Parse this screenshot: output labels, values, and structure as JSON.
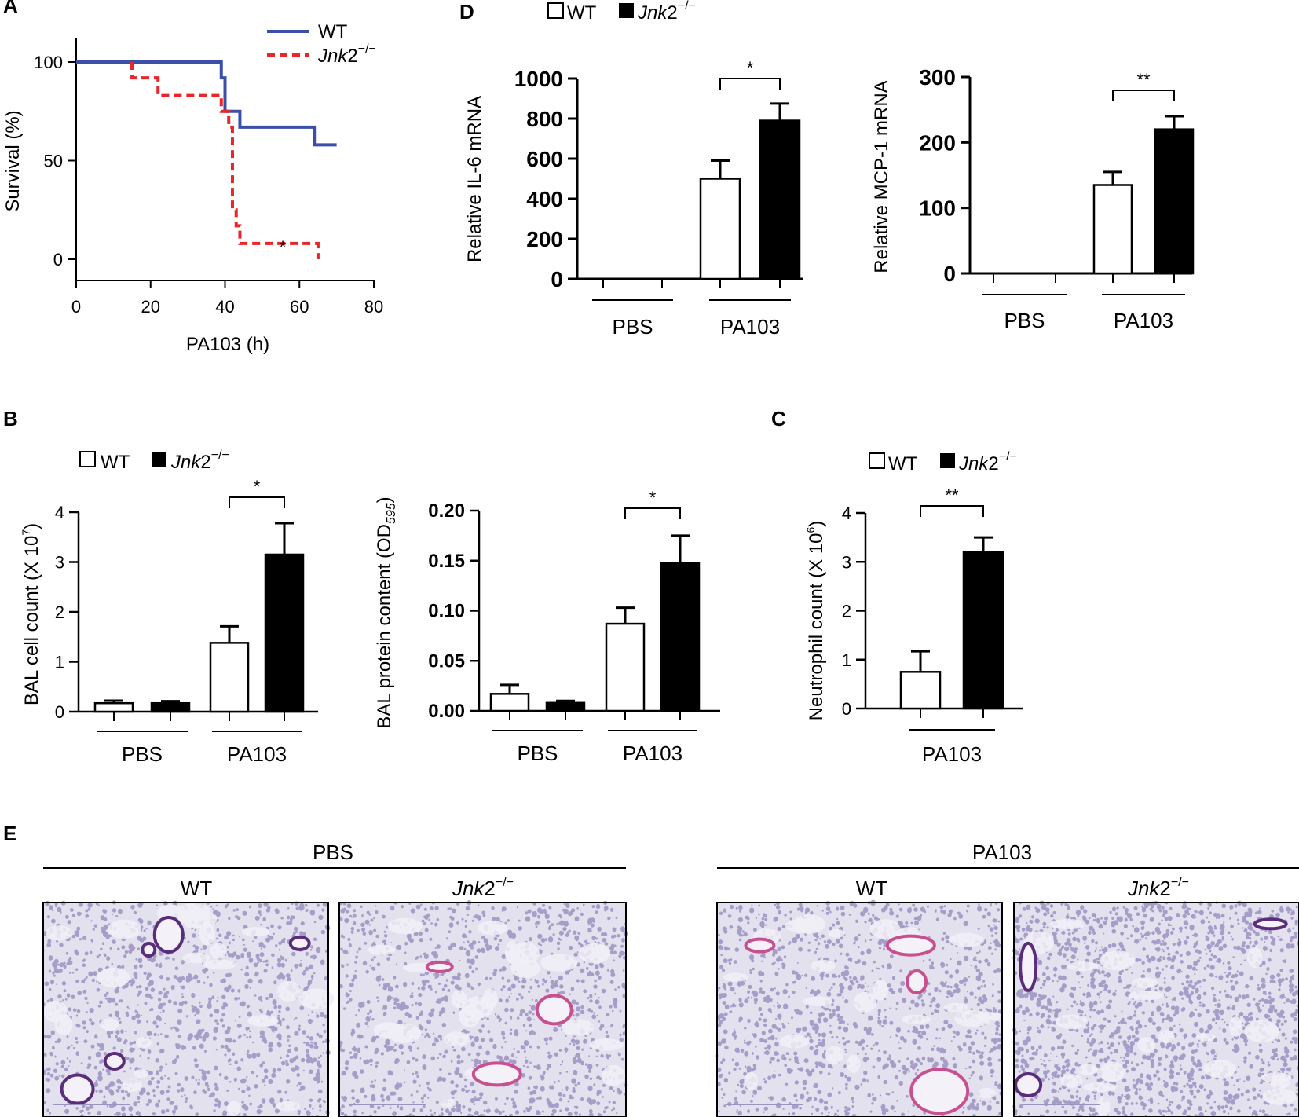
{
  "panels": {
    "A": "A",
    "B": "B",
    "C": "C",
    "D": "D",
    "E": "E"
  },
  "legend": {
    "wt": "WT",
    "ko_italic": "Jnk",
    "ko_num": "2",
    "ko_sup": "−/−"
  },
  "colors": {
    "wt_line": "#3c4fa8",
    "ko_line": "#e8262a",
    "bar_wt": "#ffffff",
    "bar_ko": "#000000"
  },
  "chart_data": [
    {
      "id": "A",
      "type": "line",
      "xlabel": "PA103 (h)",
      "ylabel": "Survival  (%)",
      "xlim": [
        0,
        80
      ],
      "ylim": [
        0,
        100
      ],
      "xticks": [
        "0",
        "20",
        "40",
        "60",
        "80"
      ],
      "yticks": [
        "0",
        "50",
        "100"
      ],
      "annotation": "*",
      "series": [
        {
          "name": "WT",
          "style": "solid",
          "steps": [
            [
              0,
              100
            ],
            [
              39,
              100
            ],
            [
              39,
              92
            ],
            [
              40,
              92
            ],
            [
              40,
              75
            ],
            [
              44,
              75
            ],
            [
              44,
              67
            ],
            [
              64,
              67
            ],
            [
              64,
              58
            ],
            [
              70,
              58
            ]
          ]
        },
        {
          "name": "Jnk2−/−",
          "style": "dashed",
          "steps": [
            [
              15,
              100
            ],
            [
              15,
              92
            ],
            [
              22,
              92
            ],
            [
              22,
              83
            ],
            [
              39,
              83
            ],
            [
              39,
              75
            ],
            [
              41,
              75
            ],
            [
              41,
              67
            ],
            [
              42,
              67
            ],
            [
              42,
              58
            ],
            [
              42,
              58
            ],
            [
              42,
              25
            ],
            [
              43,
              25
            ],
            [
              43,
              17
            ],
            [
              44,
              17
            ],
            [
              44,
              8
            ],
            [
              65,
              8
            ],
            [
              65,
              0
            ]
          ]
        }
      ]
    },
    {
      "id": "D1",
      "type": "bar",
      "ylabel": "Relative  IL-6  mRNA",
      "ylim": [
        0,
        1000
      ],
      "yticks": [
        "0",
        "200",
        "400",
        "600",
        "800",
        "1000"
      ],
      "groups": [
        "PBS",
        "PA103"
      ],
      "series": [
        {
          "name": "WT",
          "values": [
            0,
            500
          ],
          "errors": [
            0,
            90
          ]
        },
        {
          "name": "Jnk2−/−",
          "values": [
            0,
            790
          ],
          "errors": [
            0,
            85
          ]
        }
      ],
      "significance": "*"
    },
    {
      "id": "D2",
      "type": "bar",
      "ylabel": "Relative  MCP-1  mRNA",
      "ylim": [
        0,
        300
      ],
      "yticks": [
        "0",
        "100",
        "200",
        "300"
      ],
      "groups": [
        "PBS",
        "PA103"
      ],
      "series": [
        {
          "name": "WT",
          "values": [
            0,
            135
          ],
          "errors": [
            0,
            20
          ]
        },
        {
          "name": "Jnk2−/−",
          "values": [
            0,
            220
          ],
          "errors": [
            0,
            20
          ]
        }
      ],
      "significance": "**"
    },
    {
      "id": "B1",
      "type": "bar",
      "ylabel_main": "BAL cell count (X 10",
      "ylabel_sup": "7",
      "ylabel_end": ")",
      "ylim": [
        0,
        4
      ],
      "yticks": [
        "0",
        "1",
        "2",
        "3",
        "4"
      ],
      "groups": [
        "PBS",
        "PA103"
      ],
      "series": [
        {
          "name": "WT",
          "values": [
            0.17,
            1.38
          ],
          "errors": [
            0.05,
            0.33
          ]
        },
        {
          "name": "Jnk2−/−",
          "values": [
            0.17,
            3.15
          ],
          "errors": [
            0.04,
            0.63
          ]
        }
      ],
      "significance": "*"
    },
    {
      "id": "B2",
      "type": "bar",
      "ylabel_main": "BAL protein content (OD",
      "ylabel_sub": "595",
      "ylabel_end": ")",
      "ylim": [
        0,
        0.2
      ],
      "yticks": [
        "0.00",
        "0.05",
        "0.10",
        "0.15",
        "0.20"
      ],
      "groups": [
        "PBS",
        "PA103"
      ],
      "series": [
        {
          "name": "WT",
          "values": [
            0.017,
            0.087
          ],
          "errors": [
            0.009,
            0.016
          ]
        },
        {
          "name": "Jnk2−/−",
          "values": [
            0.008,
            0.148
          ],
          "errors": [
            0.002,
            0.027
          ]
        }
      ],
      "significance": "*"
    },
    {
      "id": "C",
      "type": "bar",
      "ylabel_main": "Neutrophil  count (X 10",
      "ylabel_sup": "6",
      "ylabel_end": ")",
      "ylim": [
        0,
        4
      ],
      "yticks": [
        "0",
        "1",
        "2",
        "3",
        "4"
      ],
      "groups": [
        "PA103"
      ],
      "series": [
        {
          "name": "WT",
          "values": [
            0.75
          ],
          "errors": [
            0.42
          ]
        },
        {
          "name": "Jnk2−/−",
          "values": [
            3.2
          ],
          "errors": [
            0.3
          ]
        }
      ],
      "significance": "**"
    }
  ],
  "histology": {
    "group_pbs": "PBS",
    "group_pa103": "PA103",
    "col_wt": "WT",
    "tissue_colors": {
      "bg": "#e4e1ee",
      "cell": "#8b82b8",
      "vessel": "#5a2d7a",
      "pink": "#c9508f"
    }
  }
}
